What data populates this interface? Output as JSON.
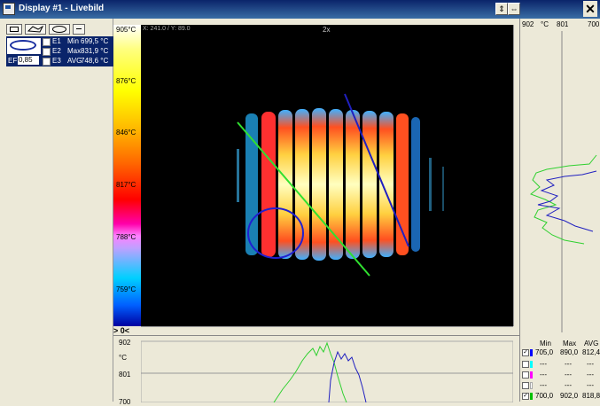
{
  "window": {
    "title": "Display #1 - Livebild"
  },
  "left_panel": {
    "ef_label": "EF",
    "ef_value": "0,85",
    "rows": [
      {
        "label": "E1",
        "stat": "Min",
        "value": "699,5 °C"
      },
      {
        "label": "E2",
        "stat": "Max",
        "value": "831,9 °C"
      },
      {
        "label": "E3",
        "stat": "AVG",
        "value": "748,6 °C"
      }
    ]
  },
  "colorbar": {
    "labels": [
      "905°C",
      "876°C",
      "846°C",
      "817°C",
      "788°C",
      "759°C"
    ]
  },
  "mainview": {
    "coord": "X: 241.0 / Y: 89.0",
    "zoom": "2x"
  },
  "right_panel": {
    "left": "902",
    "unit": "°C",
    "mid": "801",
    "right": "700"
  },
  "bottom_panel": {
    "top": "902",
    "unit": "°C",
    "mid": "801",
    "low": "700",
    "arrows": "> 0<"
  },
  "legend": {
    "headers": [
      "Min",
      "Max",
      "AVG"
    ],
    "rows": [
      {
        "checked": true,
        "color": "#0000ff",
        "min": "705,0",
        "max": "890,0",
        "avg": "812,4"
      },
      {
        "checked": false,
        "color": "#00ffff",
        "min": "---",
        "max": "---",
        "avg": "---"
      },
      {
        "checked": false,
        "color": "#ff00ff",
        "min": "---",
        "max": "---",
        "avg": "---"
      },
      {
        "checked": false,
        "color": "#ffffff",
        "min": "---",
        "max": "---",
        "avg": "---"
      },
      {
        "checked": true,
        "color": "#00c000",
        "min": "700,0",
        "max": "902,0",
        "avg": "818,8"
      }
    ]
  }
}
